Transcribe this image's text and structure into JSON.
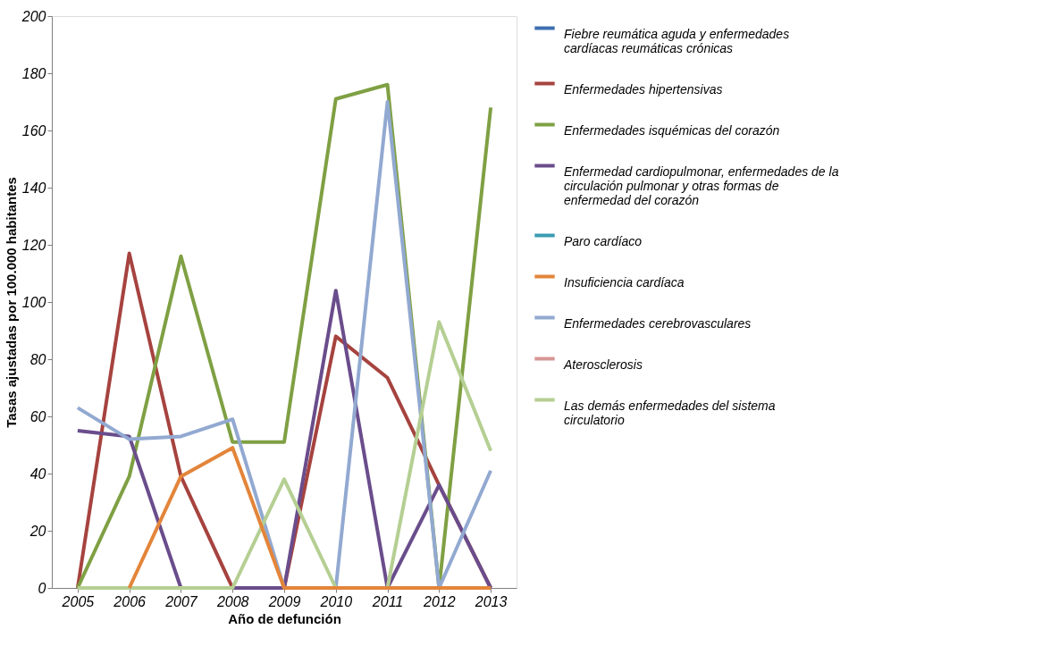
{
  "chart_data": {
    "type": "line",
    "xlabel": "Año de defunción",
    "ylabel": "Tasas ajustadas por 100.000 habitantes",
    "categories": [
      "2005",
      "2006",
      "2007",
      "2008",
      "2009",
      "2010",
      "2011",
      "2012",
      "2013"
    ],
    "ylim": [
      0,
      200
    ],
    "yticks": [
      0,
      20,
      40,
      60,
      80,
      100,
      120,
      140,
      160,
      180,
      200
    ],
    "grid": false,
    "legend": "right",
    "line_style": "solid",
    "marker": "none",
    "series": [
      {
        "name": "Fiebre reumática aguda y enfermedades cardíacas reumáticas crónicas",
        "color": "#3e6eb0",
        "values": [
          null,
          null,
          null,
          null,
          null,
          null,
          null,
          null,
          null
        ]
      },
      {
        "name": "Enfermedades hipertensivas",
        "color": "#a6433f",
        "values": [
          0,
          117,
          39,
          0,
          0,
          88,
          73.5,
          36,
          0
        ]
      },
      {
        "name": "Enfermedades isquémicas del corazón",
        "color": "#7fa043",
        "values": [
          0,
          39,
          116,
          51,
          51,
          171,
          176,
          0,
          168
        ]
      },
      {
        "name": "Enfermedad cardiopulmonar, enfermedades de la circulación pulmonar y otras formas de enfermedad del corazón",
        "color": "#6a4d8c",
        "values": [
          55,
          53,
          0,
          0,
          0,
          104,
          0,
          36,
          0
        ]
      },
      {
        "name": "Paro cardíaco",
        "color": "#3a9bb3",
        "values": [
          null,
          null,
          null,
          null,
          null,
          null,
          null,
          null,
          null
        ]
      },
      {
        "name": "Enfermedades cerebrovasculares",
        "color": "#92a9d1",
        "values": [
          63,
          52,
          53,
          59,
          0,
          0,
          170,
          0,
          41
        ]
      },
      {
        "name": "Aterosclerosis",
        "color": "#d69694",
        "values": [
          null,
          null,
          null,
          null,
          null,
          null,
          null,
          null,
          null
        ]
      },
      {
        "name": "Las demás enfermedades del sistema circulatorio",
        "color": "#b5cf93",
        "values": [
          0,
          0,
          0,
          0,
          38,
          0,
          0,
          93,
          48
        ]
      },
      {
        "name": "Insuficiencia cardíaca",
        "color": "#e3853a",
        "values": [
          null,
          0,
          39,
          49,
          0,
          0,
          0,
          0,
          0
        ]
      }
    ]
  }
}
